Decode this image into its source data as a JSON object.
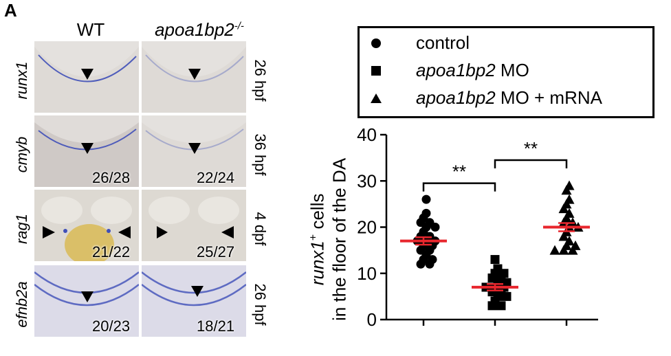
{
  "panel_label": "A",
  "columns": {
    "wt": "WT",
    "mutant": "apoa1bp2",
    "mutant_sup": "-/-"
  },
  "rows": [
    {
      "gene": "runx1",
      "stage": "26 hpf",
      "wt_count": "",
      "mut_count": ""
    },
    {
      "gene": "cmyb",
      "stage": "36 hpf",
      "wt_count": "26/28",
      "mut_count": "22/24"
    },
    {
      "gene": "rag1",
      "stage": "4 dpf",
      "wt_count": "21/22",
      "mut_count": "25/27"
    },
    {
      "gene": "efnb2a",
      "stage": "26 hpf",
      "wt_count": "20/23",
      "mut_count": "18/21"
    }
  ],
  "legend": {
    "items": [
      {
        "symbol": "circle",
        "gene": "",
        "label": "control"
      },
      {
        "symbol": "square",
        "gene": "apoa1bp2",
        "label": " MO"
      },
      {
        "symbol": "triangle",
        "gene": "apoa1bp2",
        "label": " MO + mRNA"
      }
    ]
  },
  "y_title": {
    "gene": "runx1",
    "sup": "+",
    "line1_rest": " cells",
    "line2": "in the floor of the DA"
  },
  "significance": [
    "**",
    "**"
  ],
  "colors": {
    "mean_line": "#e8262d",
    "marker": "#000000",
    "tile_bg": "#d9d5cf",
    "stain": "#3f4fb8",
    "yolk": "#d9b43a"
  },
  "chart_data": {
    "type": "scatter",
    "ylim": [
      0,
      40
    ],
    "yticks": [
      0,
      10,
      20,
      30,
      40
    ],
    "series": [
      {
        "name": "control",
        "symbol": "circle",
        "mean": 17,
        "sem": 0.8,
        "values": [
          26,
          23,
          22,
          21,
          21,
          20,
          20,
          19,
          18,
          18,
          17,
          17,
          17,
          16,
          16,
          15,
          15,
          14,
          13,
          13,
          12,
          12
        ]
      },
      {
        "name": "apoa1bp2 MO",
        "symbol": "square",
        "mean": 7,
        "sem": 0.7,
        "values": [
          13,
          11,
          10,
          10,
          9,
          9,
          8,
          8,
          7,
          7,
          7,
          6,
          6,
          5,
          5,
          4,
          3,
          3
        ]
      },
      {
        "name": "apoa1bp2 MO + mRNA",
        "symbol": "triangle",
        "mean": 20,
        "sem": 0.9,
        "values": [
          29,
          28,
          26,
          25,
          24,
          23,
          22,
          21,
          21,
          20,
          20,
          19,
          18,
          17,
          16,
          16,
          15,
          15,
          15
        ]
      }
    ]
  }
}
